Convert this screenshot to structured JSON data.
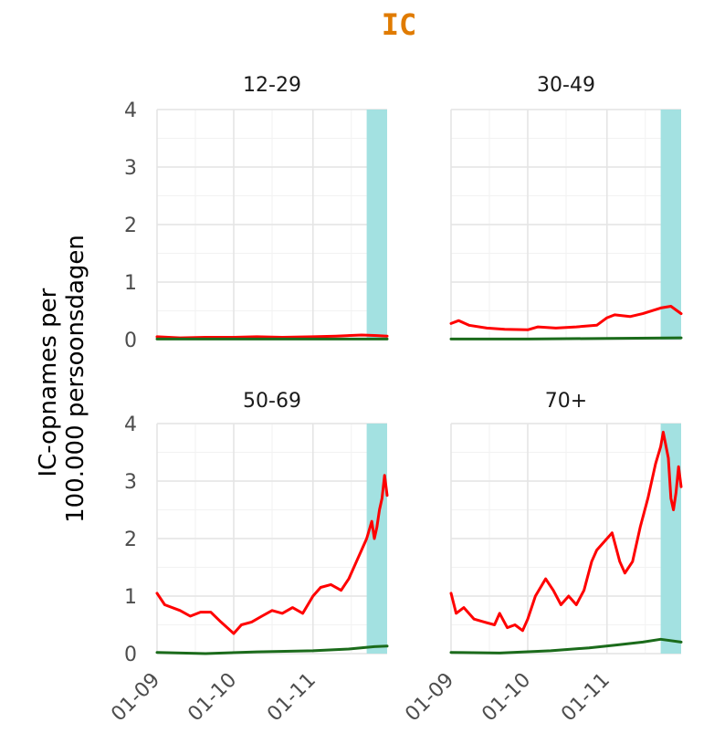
{
  "chart_data": {
    "type": "line",
    "title": "IC",
    "title_color": "#E07B00",
    "ylabel_lines": [
      "IC-opnames per",
      "100.000 persoonsdagen"
    ],
    "xlabel": "",
    "ylim": [
      0,
      4
    ],
    "yticks": [
      "0",
      "1",
      "2",
      "3",
      "4"
    ],
    "xlim": [
      "2021-09-01",
      "2021-11-30"
    ],
    "xticks": [
      {
        "date": "2021-09-01",
        "label": "01-09"
      },
      {
        "date": "2021-10-01",
        "label": "01-10"
      },
      {
        "date": "2021-11-01",
        "label": "01-11"
      }
    ],
    "highlight": {
      "from": "2021-11-22",
      "to": "2021-11-30",
      "color": "#A3E1E1"
    },
    "grid": true,
    "series_colors": {
      "unvaccinated": "#FF0000",
      "vaccinated": "#1B6B1B"
    },
    "panels": [
      {
        "label": "12-29",
        "series": [
          {
            "color": "#FF0000",
            "points": [
              [
                "2021-09-01",
                0.05
              ],
              [
                "2021-09-10",
                0.03
              ],
              [
                "2021-09-20",
                0.04
              ],
              [
                "2021-10-01",
                0.04
              ],
              [
                "2021-10-10",
                0.05
              ],
              [
                "2021-10-20",
                0.04
              ],
              [
                "2021-11-01",
                0.05
              ],
              [
                "2021-11-10",
                0.06
              ],
              [
                "2021-11-20",
                0.08
              ],
              [
                "2021-11-26",
                0.07
              ],
              [
                "2021-11-30",
                0.06
              ]
            ]
          },
          {
            "color": "#1B6B1B",
            "points": [
              [
                "2021-09-01",
                0.01
              ],
              [
                "2021-10-01",
                0.01
              ],
              [
                "2021-11-01",
                0.01
              ],
              [
                "2021-11-30",
                0.01
              ]
            ]
          }
        ]
      },
      {
        "label": "30-49",
        "series": [
          {
            "color": "#FF0000",
            "points": [
              [
                "2021-09-01",
                0.28
              ],
              [
                "2021-09-04",
                0.33
              ],
              [
                "2021-09-08",
                0.25
              ],
              [
                "2021-09-15",
                0.2
              ],
              [
                "2021-09-22",
                0.18
              ],
              [
                "2021-10-01",
                0.17
              ],
              [
                "2021-10-05",
                0.22
              ],
              [
                "2021-10-12",
                0.2
              ],
              [
                "2021-10-20",
                0.22
              ],
              [
                "2021-10-28",
                0.25
              ],
              [
                "2021-11-01",
                0.38
              ],
              [
                "2021-11-04",
                0.43
              ],
              [
                "2021-11-10",
                0.4
              ],
              [
                "2021-11-15",
                0.45
              ],
              [
                "2021-11-22",
                0.55
              ],
              [
                "2021-11-26",
                0.58
              ],
              [
                "2021-11-30",
                0.45
              ]
            ]
          },
          {
            "color": "#1B6B1B",
            "points": [
              [
                "2021-09-01",
                0.01
              ],
              [
                "2021-10-01",
                0.01
              ],
              [
                "2021-11-01",
                0.02
              ],
              [
                "2021-11-30",
                0.03
              ]
            ]
          }
        ]
      },
      {
        "label": "50-69",
        "series": [
          {
            "color": "#FF0000",
            "points": [
              [
                "2021-09-01",
                1.05
              ],
              [
                "2021-09-04",
                0.85
              ],
              [
                "2021-09-10",
                0.75
              ],
              [
                "2021-09-14",
                0.65
              ],
              [
                "2021-09-18",
                0.72
              ],
              [
                "2021-09-22",
                0.72
              ],
              [
                "2021-09-26",
                0.55
              ],
              [
                "2021-10-01",
                0.35
              ],
              [
                "2021-10-04",
                0.5
              ],
              [
                "2021-10-08",
                0.55
              ],
              [
                "2021-10-12",
                0.65
              ],
              [
                "2021-10-16",
                0.75
              ],
              [
                "2021-10-20",
                0.7
              ],
              [
                "2021-10-24",
                0.8
              ],
              [
                "2021-10-28",
                0.7
              ],
              [
                "2021-11-01",
                1.0
              ],
              [
                "2021-11-04",
                1.15
              ],
              [
                "2021-11-08",
                1.2
              ],
              [
                "2021-11-12",
                1.1
              ],
              [
                "2021-11-15",
                1.3
              ],
              [
                "2021-11-18",
                1.6
              ],
              [
                "2021-11-20",
                1.8
              ],
              [
                "2021-11-22",
                2.0
              ],
              [
                "2021-11-24",
                2.3
              ],
              [
                "2021-11-25",
                2.0
              ],
              [
                "2021-11-26",
                2.2
              ],
              [
                "2021-11-27",
                2.5
              ],
              [
                "2021-11-28",
                2.7
              ],
              [
                "2021-11-29",
                3.1
              ],
              [
                "2021-11-30",
                2.75
              ]
            ]
          },
          {
            "color": "#1B6B1B",
            "points": [
              [
                "2021-09-01",
                0.02
              ],
              [
                "2021-09-20",
                0.0
              ],
              [
                "2021-10-10",
                0.03
              ],
              [
                "2021-11-01",
                0.05
              ],
              [
                "2021-11-15",
                0.08
              ],
              [
                "2021-11-25",
                0.12
              ],
              [
                "2021-11-30",
                0.13
              ]
            ]
          }
        ]
      },
      {
        "label": "70+",
        "series": [
          {
            "color": "#FF0000",
            "points": [
              [
                "2021-09-01",
                1.05
              ],
              [
                "2021-09-03",
                0.7
              ],
              [
                "2021-09-06",
                0.8
              ],
              [
                "2021-09-10",
                0.6
              ],
              [
                "2021-09-14",
                0.55
              ],
              [
                "2021-09-18",
                0.5
              ],
              [
                "2021-09-20",
                0.7
              ],
              [
                "2021-09-23",
                0.45
              ],
              [
                "2021-09-26",
                0.5
              ],
              [
                "2021-09-29",
                0.4
              ],
              [
                "2021-10-01",
                0.6
              ],
              [
                "2021-10-04",
                1.0
              ],
              [
                "2021-10-08",
                1.3
              ],
              [
                "2021-10-11",
                1.1
              ],
              [
                "2021-10-14",
                0.85
              ],
              [
                "2021-10-17",
                1.0
              ],
              [
                "2021-10-20",
                0.85
              ],
              [
                "2021-10-23",
                1.1
              ],
              [
                "2021-10-26",
                1.6
              ],
              [
                "2021-10-28",
                1.8
              ],
              [
                "2021-11-01",
                2.0
              ],
              [
                "2021-11-03",
                2.1
              ],
              [
                "2021-11-06",
                1.6
              ],
              [
                "2021-11-08",
                1.4
              ],
              [
                "2021-11-11",
                1.6
              ],
              [
                "2021-11-14",
                2.2
              ],
              [
                "2021-11-17",
                2.7
              ],
              [
                "2021-11-20",
                3.3
              ],
              [
                "2021-11-22",
                3.6
              ],
              [
                "2021-11-23",
                3.85
              ],
              [
                "2021-11-25",
                3.4
              ],
              [
                "2021-11-26",
                2.7
              ],
              [
                "2021-11-27",
                2.5
              ],
              [
                "2021-11-28",
                2.8
              ],
              [
                "2021-11-29",
                3.25
              ],
              [
                "2021-11-30",
                2.9
              ]
            ]
          },
          {
            "color": "#1B6B1B",
            "points": [
              [
                "2021-09-01",
                0.02
              ],
              [
                "2021-09-20",
                0.01
              ],
              [
                "2021-10-10",
                0.05
              ],
              [
                "2021-10-25",
                0.1
              ],
              [
                "2021-11-05",
                0.15
              ],
              [
                "2021-11-15",
                0.2
              ],
              [
                "2021-11-22",
                0.25
              ],
              [
                "2021-11-30",
                0.2
              ]
            ]
          }
        ]
      }
    ]
  }
}
